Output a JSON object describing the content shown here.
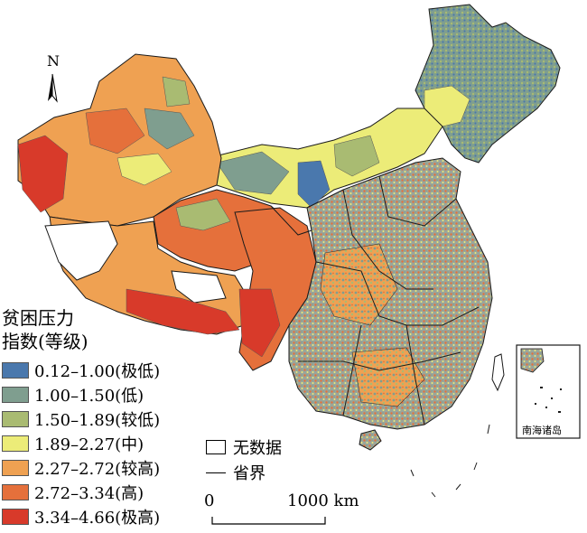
{
  "legend": {
    "title_line1": "贫困压力",
    "title_line2": "指数(等级)",
    "items": [
      {
        "label": "0.12–1.00(极低)",
        "color": "#4a78ad"
      },
      {
        "label": "1.00–1.50(低)",
        "color": "#7f9e8f"
      },
      {
        "label": "1.50–1.89(较低)",
        "color": "#a9bb72"
      },
      {
        "label": "1.89–2.27(中)",
        "color": "#ecec78"
      },
      {
        "label": "2.27–2.72(较高)",
        "color": "#efa152"
      },
      {
        "label": "2.72–3.34(高)",
        "color": "#e5703b"
      },
      {
        "label": "3.34–4.66(极高)",
        "color": "#d83a2a"
      }
    ]
  },
  "no_data_label": "无数据",
  "boundary_label": "省界",
  "north_label": "N",
  "scale": {
    "start": "0",
    "end": "1000 km"
  },
  "inset_label": "南海诸岛",
  "colors": {
    "no_data": "#ffffff",
    "border": "#1a1a1a"
  }
}
